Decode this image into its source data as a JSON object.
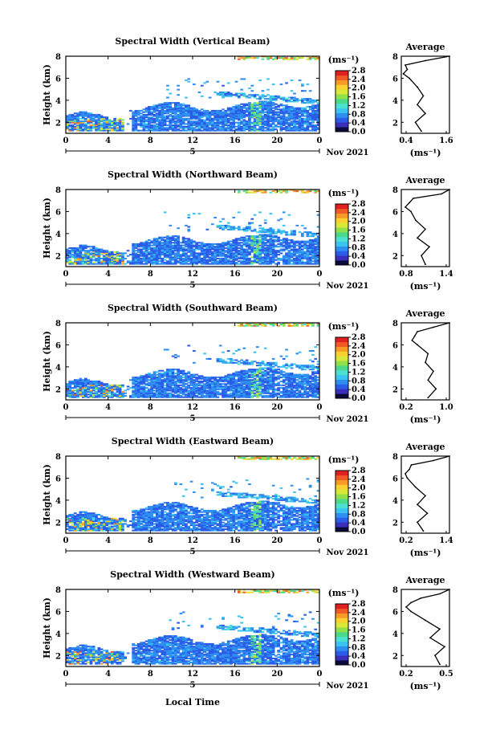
{
  "figure": {
    "xlabel": "Local Time",
    "date_label": "Nov 2021",
    "ylabel": "Height (km)",
    "unit_label": "(ms⁻¹)",
    "avg_title": "Average",
    "day_label": "5",
    "x_ticks": [
      "0",
      "4",
      "8",
      "12",
      "16",
      "20",
      "0"
    ],
    "y_ticks": [
      "2",
      "4",
      "6",
      "8"
    ],
    "colorbar_ticks": [
      "0.0",
      "0.4",
      "0.8",
      "1.2",
      "1.6",
      "2.0",
      "2.4",
      "2.8"
    ],
    "colormap": [
      "#0b0b3b",
      "#3a2fb8",
      "#2a5ce8",
      "#2e8ff0",
      "#3cc4f0",
      "#4de0d0",
      "#4cd98a",
      "#8fe04a",
      "#d8e83a",
      "#f8d030",
      "#f89a28",
      "#f05a26",
      "#e02020"
    ],
    "series_color": "#000000"
  },
  "chart_data": [
    {
      "type": "heatmap",
      "title": "Spectral Width (Vertical Beam)",
      "xlabel": "",
      "ylabel": "Height (km)",
      "xlim": [
        0,
        24
      ],
      "ylim": [
        1,
        8
      ],
      "zlim": [
        0,
        2.8
      ],
      "average_profile": {
        "xlim": [
          0.4,
          1.6
        ],
        "x_ticks": [
          "0.4",
          "1.6"
        ],
        "height": [
          1.2,
          2.0,
          2.8,
          3.6,
          4.4,
          5.2,
          6.0,
          6.4,
          6.8,
          7.2,
          7.6,
          8.0
        ],
        "width": [
          0.9,
          0.75,
          1.0,
          0.8,
          0.95,
          0.8,
          0.6,
          0.45,
          0.55,
          0.5,
          1.0,
          1.6
        ]
      }
    },
    {
      "type": "heatmap",
      "title": "Spectral Width (Northward Beam)",
      "xlabel": "",
      "ylabel": "Height (km)",
      "xlim": [
        0,
        24
      ],
      "ylim": [
        1,
        8
      ],
      "zlim": [
        0,
        2.8
      ],
      "average_profile": {
        "xlim": [
          0.8,
          1.4
        ],
        "x_ticks": [
          "0.8",
          "1.4"
        ],
        "height": [
          1.2,
          2.0,
          2.8,
          3.6,
          4.4,
          5.2,
          6.0,
          6.4,
          6.8,
          7.2,
          7.6,
          8.0
        ],
        "width": [
          1.1,
          1.05,
          1.15,
          1.0,
          1.1,
          0.98,
          0.92,
          0.85,
          0.9,
          0.95,
          1.3,
          1.4
        ]
      }
    },
    {
      "type": "heatmap",
      "title": "Spectral Width (Southward Beam)",
      "xlabel": "",
      "ylabel": "Height (km)",
      "xlim": [
        0,
        24
      ],
      "ylim": [
        1,
        8
      ],
      "zlim": [
        0,
        2.8
      ],
      "average_profile": {
        "xlim": [
          0.1,
          1.0
        ],
        "x_ticks": [
          "0.2",
          "1.0"
        ],
        "height": [
          1.2,
          2.0,
          2.8,
          3.6,
          4.4,
          5.2,
          6.0,
          6.4,
          6.8,
          7.2,
          7.6,
          8.0
        ],
        "width": [
          0.6,
          0.75,
          0.6,
          0.7,
          0.55,
          0.6,
          0.4,
          0.3,
          0.35,
          0.4,
          0.7,
          1.0
        ]
      }
    },
    {
      "type": "heatmap",
      "title": "Spectral Width (Eastward Beam)",
      "xlabel": "",
      "ylabel": "Height (km)",
      "xlim": [
        0,
        24
      ],
      "ylim": [
        1,
        8
      ],
      "zlim": [
        0,
        2.8
      ],
      "average_profile": {
        "xlim": [
          0.2,
          1.4
        ],
        "x_ticks": [
          "0.2",
          "1.4"
        ],
        "height": [
          1.2,
          2.0,
          2.8,
          3.6,
          4.4,
          5.2,
          6.0,
          6.4,
          6.8,
          7.2,
          7.6,
          8.0
        ],
        "width": [
          0.75,
          0.6,
          0.85,
          0.6,
          0.8,
          0.55,
          0.35,
          0.3,
          0.4,
          0.45,
          1.0,
          1.4
        ]
      }
    },
    {
      "type": "heatmap",
      "title": "Spectral Width (Westward Beam)",
      "xlabel": "Local Time",
      "ylabel": "Height (km)",
      "xlim": [
        0,
        24
      ],
      "ylim": [
        1,
        8
      ],
      "zlim": [
        0,
        2.8
      ],
      "average_profile": {
        "xlim": [
          0.1,
          0.6
        ],
        "x_ticks": [
          "0.2",
          "0.5"
        ],
        "height": [
          1.2,
          2.0,
          2.8,
          3.6,
          4.4,
          5.2,
          6.0,
          6.4,
          6.8,
          7.2,
          7.6,
          8.0
        ],
        "width": [
          0.5,
          0.45,
          0.55,
          0.4,
          0.5,
          0.35,
          0.2,
          0.15,
          0.2,
          0.3,
          0.5,
          0.6
        ]
      }
    }
  ]
}
